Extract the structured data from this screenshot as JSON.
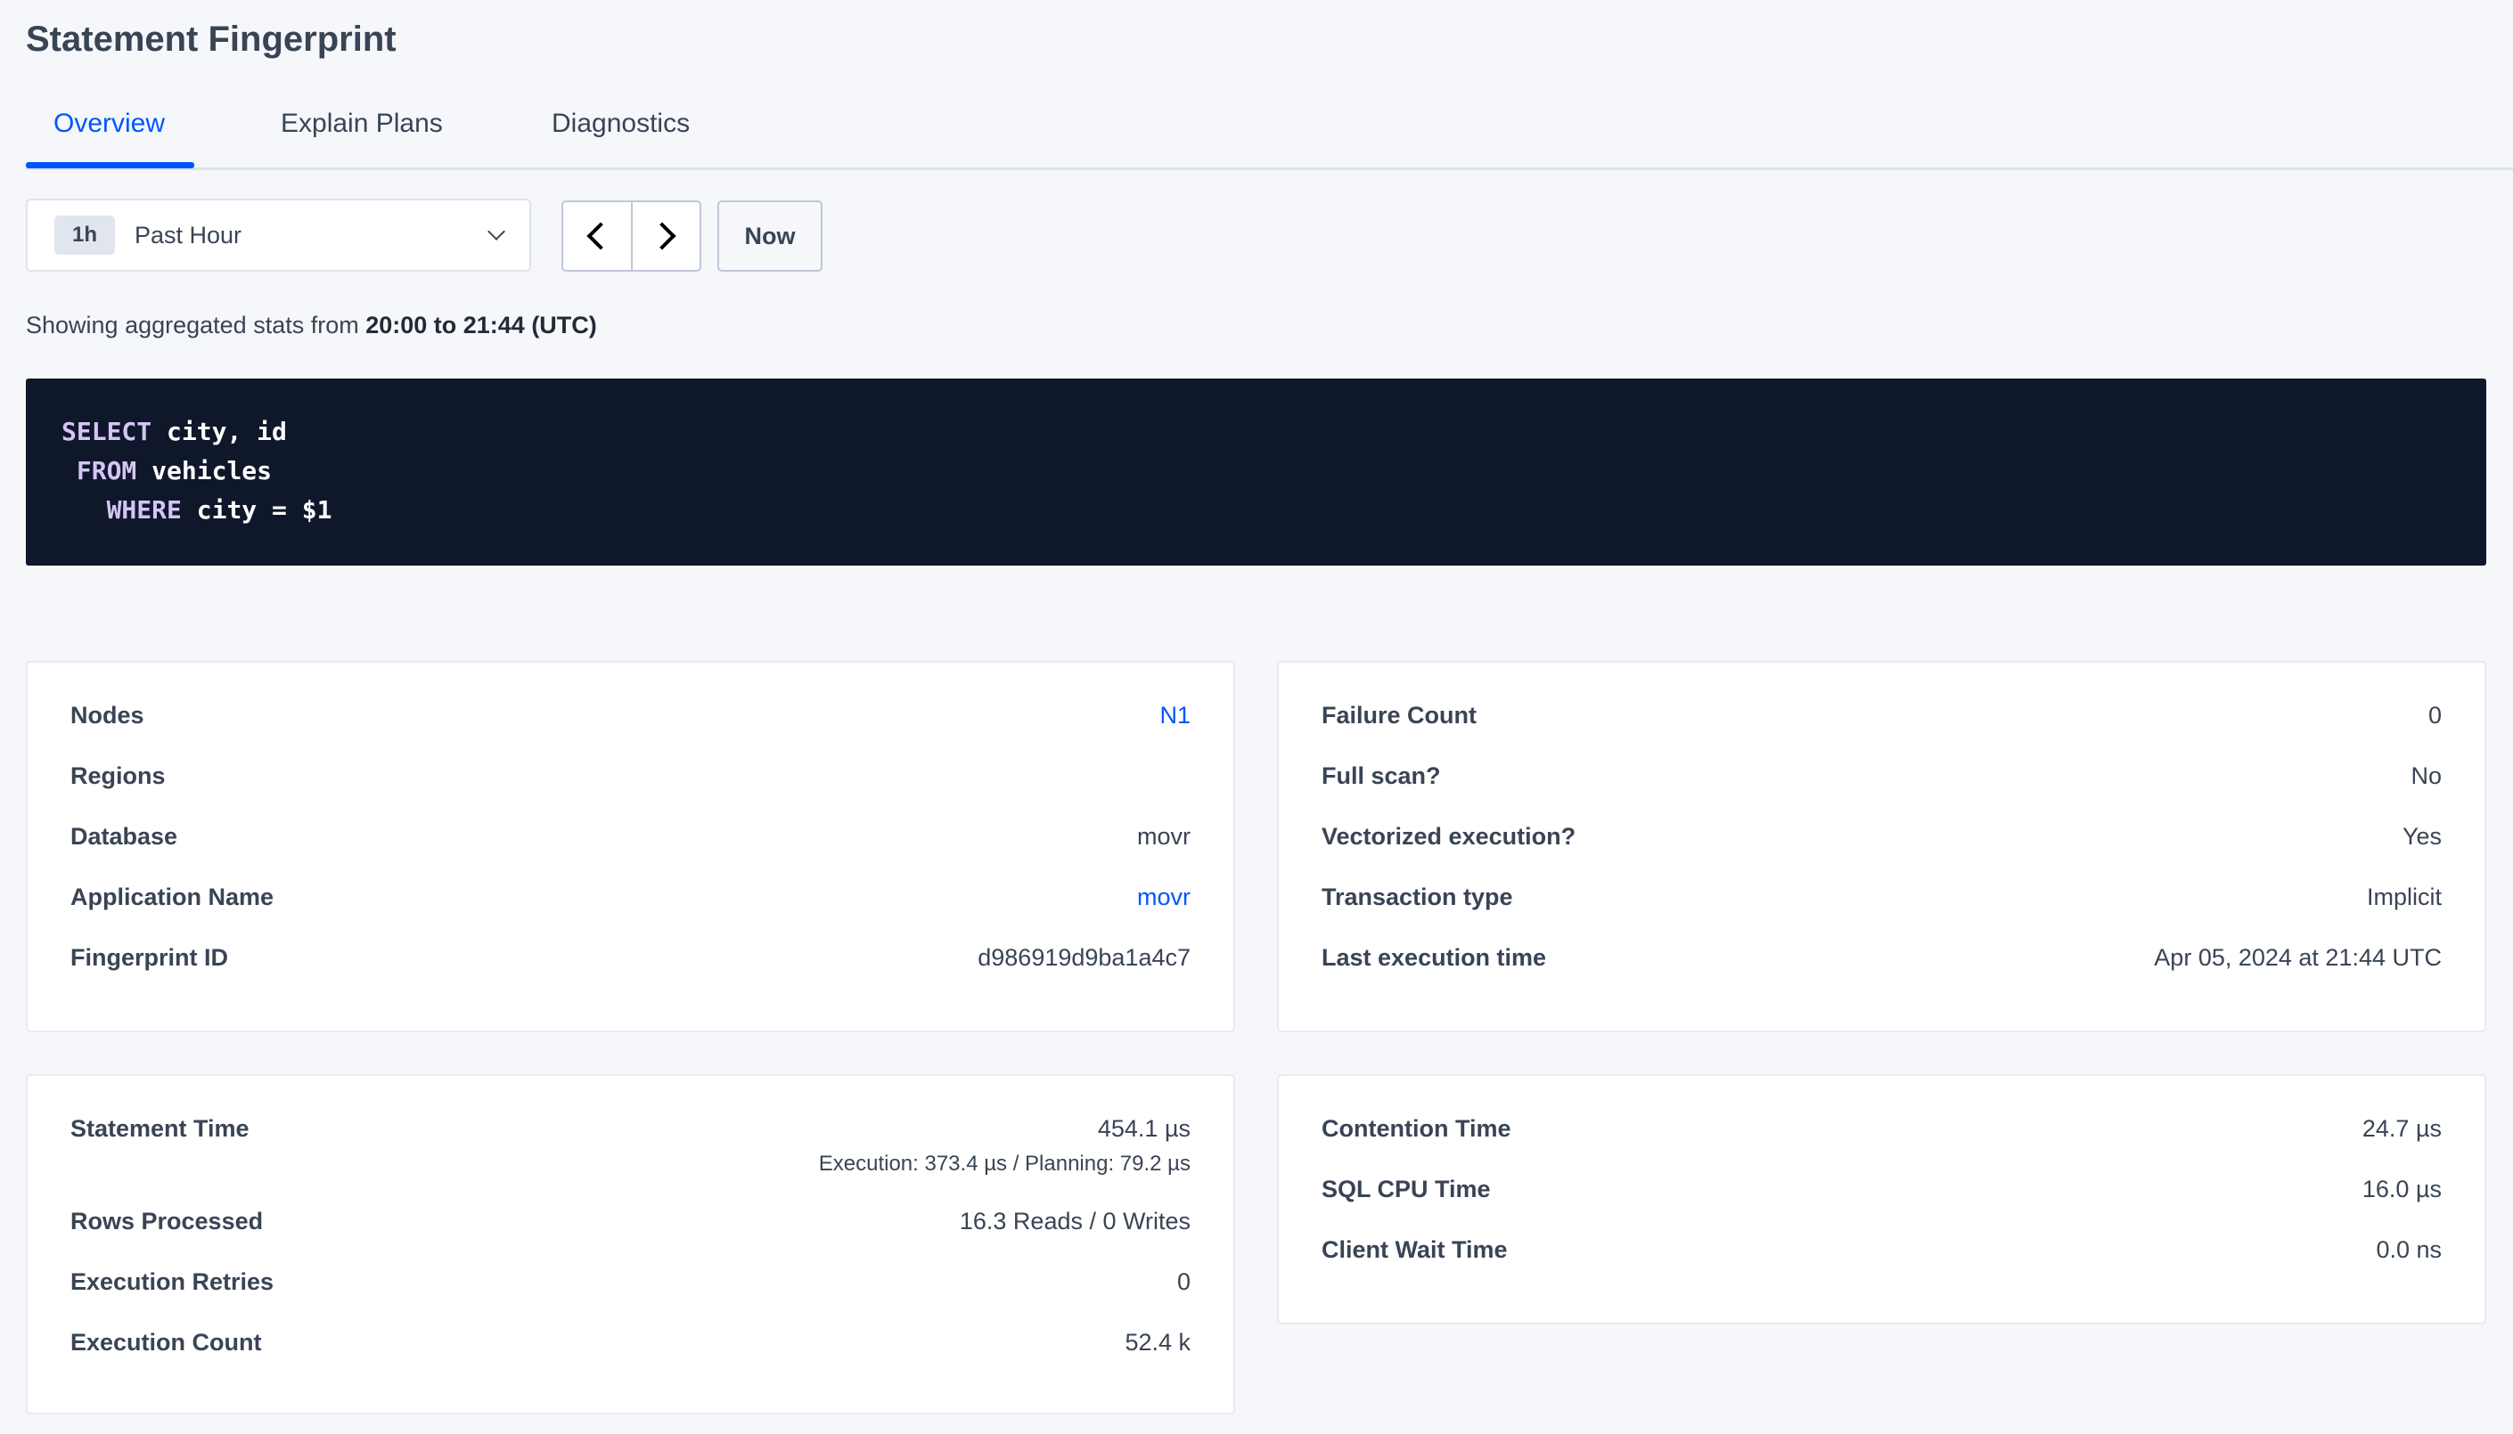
{
  "page_title": "Statement Fingerprint",
  "tabs": [
    {
      "label": "Overview",
      "active": true
    },
    {
      "label": "Explain Plans",
      "active": false
    },
    {
      "label": "Diagnostics",
      "active": false
    }
  ],
  "time_picker": {
    "badge": "1h",
    "selected": "Past Hour",
    "prev_icon": "chevron-left",
    "next_icon": "chevron-right",
    "now_label": "Now"
  },
  "showing": {
    "prefix": "Showing aggregated stats from ",
    "range": "20:00 to 21:44 (UTC)"
  },
  "sql": {
    "lines": [
      {
        "kw": "SELECT",
        "rest": " city, id",
        "indent": ""
      },
      {
        "kw": "FROM",
        "rest": " vehicles",
        "indent": " "
      },
      {
        "kw": "WHERE",
        "rest": " city = $1",
        "indent": "   "
      }
    ]
  },
  "overview_left": [
    {
      "label": "Nodes",
      "value": "N1",
      "link": true
    },
    {
      "label": "Regions",
      "value": "",
      "link": false
    },
    {
      "label": "Database",
      "value": "movr",
      "link": false
    },
    {
      "label": "Application Name",
      "value": "movr",
      "link": true
    },
    {
      "label": "Fingerprint ID",
      "value": "d986919d9ba1a4c7",
      "link": false
    }
  ],
  "overview_right": [
    {
      "label": "Failure Count",
      "value": "0"
    },
    {
      "label": "Full scan?",
      "value": "No"
    },
    {
      "label": "Vectorized execution?",
      "value": "Yes"
    },
    {
      "label": "Transaction type",
      "value": "Implicit"
    },
    {
      "label": "Last execution time",
      "value": "Apr 05, 2024 at 21:44 UTC"
    }
  ],
  "stats_left": [
    {
      "label": "Statement Time",
      "value": "454.1 µs",
      "sub": "Execution: 373.4 µs / Planning: 79.2 µs"
    },
    {
      "label": "Rows Processed",
      "value": "16.3 Reads / 0 Writes"
    },
    {
      "label": "Execution Retries",
      "value": "0"
    },
    {
      "label": "Execution Count",
      "value": "52.4 k"
    }
  ],
  "stats_right": [
    {
      "label": "Contention Time",
      "value": "24.7 µs"
    },
    {
      "label": "SQL CPU Time",
      "value": "16.0 µs"
    },
    {
      "label": "Client Wait Time",
      "value": "0.0 ns"
    }
  ],
  "colors": {
    "accent": "#0055ff",
    "code_bg": "#0f172a",
    "keyword": "#d6c4f5",
    "text": "#394455"
  }
}
